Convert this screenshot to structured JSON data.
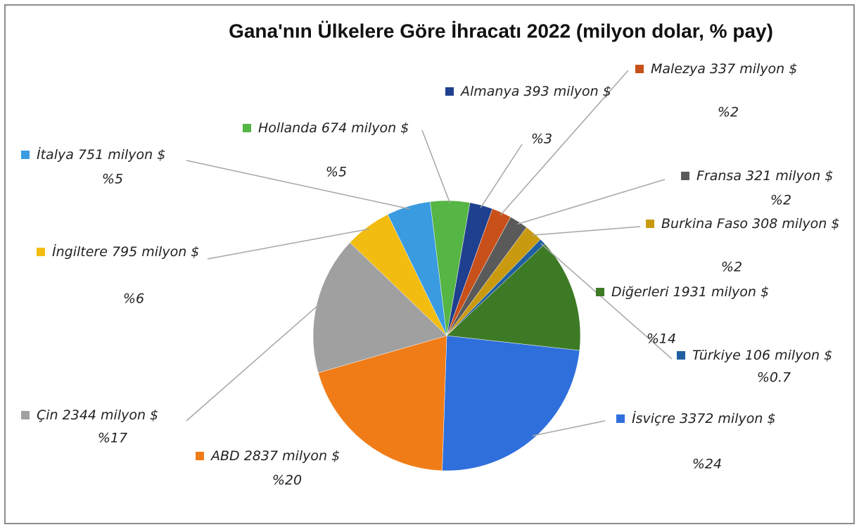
{
  "chart_data": {
    "type": "pie",
    "title": "Gana'nın Ülkelere Göre İhracatı 2022 (milyon dolar, % pay)",
    "categories": [
      "Almanya",
      "Malezya",
      "Fransa",
      "Burkina Faso",
      "Türkiye",
      "Diğerleri",
      "İsviçre",
      "ABD",
      "Çin",
      "İngiltere",
      "İtalya",
      "Hollanda"
    ],
    "values": [
      393,
      337,
      321,
      308,
      106,
      1931,
      3372,
      2837,
      2344,
      795,
      751,
      674
    ],
    "value_labels": [
      "393 milyon $",
      "337 milyon $",
      "321 milyon $",
      "308 milyon $",
      "106 milyon $",
      "1931 milyon $",
      "3372 milyon $",
      "2837 milyon $",
      "2344 milyon $",
      "795 milyon $",
      "751 milyon $",
      "674 milyon $"
    ],
    "percentages": [
      3,
      2,
      2,
      2,
      0.7,
      14,
      24,
      20,
      17,
      6,
      5,
      5
    ],
    "percent_labels": [
      "%3",
      "%2",
      "%2",
      "%2",
      "%0.7",
      "%14",
      "%24",
      "%20",
      "%17",
      "%6",
      "%5",
      "%5"
    ],
    "colors": [
      "#1f3f8f",
      "#c8501a",
      "#5a5a5a",
      "#c99a10",
      "#1f5fa0",
      "#3d7a25",
      "#2f6fdc",
      "#f07c18",
      "#a0a0a0",
      "#f2bc10",
      "#3a9be0",
      "#55b545"
    ]
  }
}
